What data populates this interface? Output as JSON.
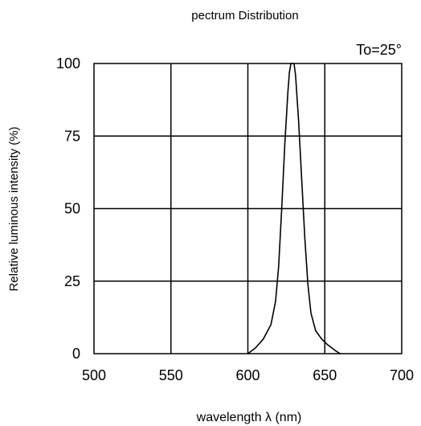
{
  "chart_data": {
    "type": "line",
    "title": "pectrum Distribution",
    "annotation": "To=25°",
    "xlabel": "wavelength  λ (nm)",
    "ylabel": "Relative luminous intensity  (%)",
    "xlim": [
      500,
      700
    ],
    "ylim": [
      0,
      100
    ],
    "x_ticks": [
      500,
      550,
      600,
      650,
      700
    ],
    "y_ticks": [
      0,
      25,
      50,
      75,
      100
    ],
    "grid": true,
    "series": [
      {
        "values": [
          {
            "x": 600,
            "y": 0
          },
          {
            "x": 605,
            "y": 2
          },
          {
            "x": 610,
            "y": 5
          },
          {
            "x": 615,
            "y": 10
          },
          {
            "x": 618,
            "y": 18
          },
          {
            "x": 620,
            "y": 30
          },
          {
            "x": 622,
            "y": 50
          },
          {
            "x": 624,
            "y": 72
          },
          {
            "x": 626,
            "y": 90
          },
          {
            "x": 627,
            "y": 97
          },
          {
            "x": 628,
            "y": 100
          },
          {
            "x": 630,
            "y": 100
          },
          {
            "x": 631,
            "y": 96
          },
          {
            "x": 633,
            "y": 80
          },
          {
            "x": 635,
            "y": 60
          },
          {
            "x": 637,
            "y": 40
          },
          {
            "x": 639,
            "y": 24
          },
          {
            "x": 641,
            "y": 14
          },
          {
            "x": 644,
            "y": 8
          },
          {
            "x": 648,
            "y": 5
          },
          {
            "x": 652,
            "y": 3
          },
          {
            "x": 657,
            "y": 1
          },
          {
            "x": 660,
            "y": 0
          }
        ]
      }
    ]
  }
}
